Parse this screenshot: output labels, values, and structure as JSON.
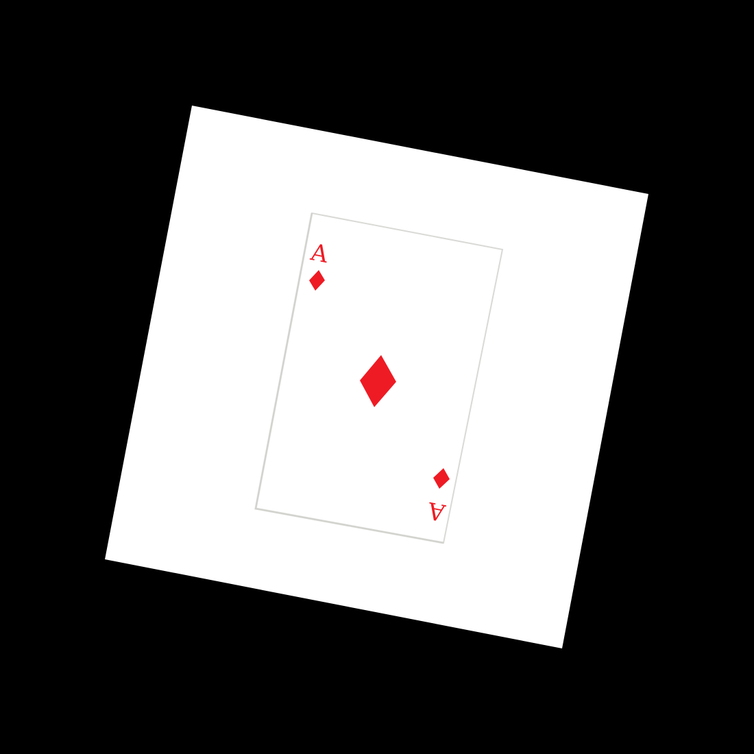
{
  "colors": {
    "background": "#000000",
    "sheet": "#ffffff",
    "card": "#ffffff",
    "card_edge": "#d9d9d6",
    "suit": "#ee1b24"
  },
  "card": {
    "rank": "A",
    "suit": "diamonds",
    "suit_icon": "diamond-icon"
  }
}
